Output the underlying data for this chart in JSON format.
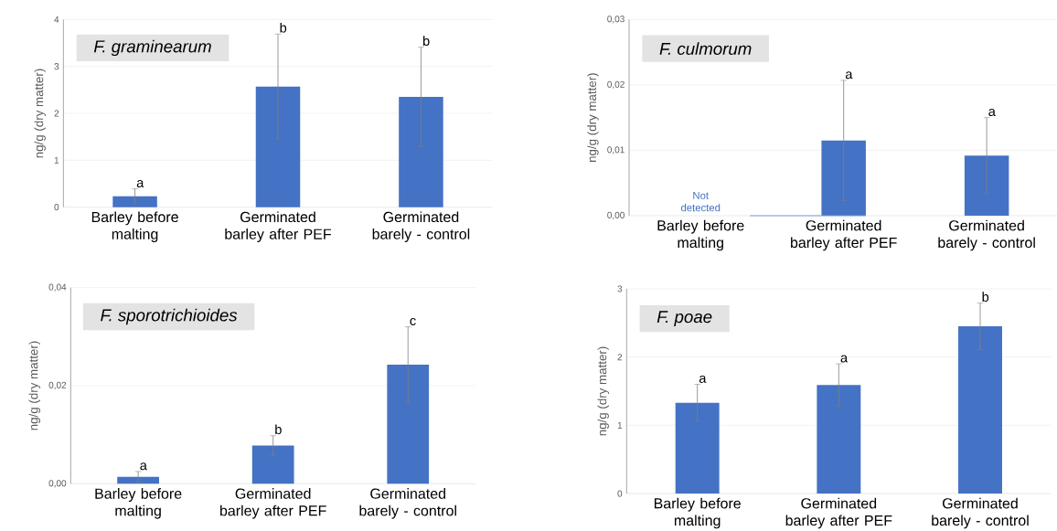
{
  "chart_data": [
    {
      "type": "bar",
      "title": "F. graminearum",
      "ylabel": "ng/g (dry matter)",
      "categories": [
        "Barley before malting",
        "Germinated barley after PEF",
        "Germinated barely - control"
      ],
      "values": [
        0.23,
        2.57,
        2.35
      ],
      "errors": [
        0.16,
        1.12,
        1.06
      ],
      "color": "#4472c4",
      "ylim": [
        0,
        4
      ],
      "yticks": [
        0,
        1,
        2,
        3,
        4
      ],
      "grid": "y",
      "annotations": [
        {
          "text": "a",
          "x": "Barley before malting",
          "y": 0.39
        },
        {
          "text": "b",
          "x": "Germinated barley after PEF",
          "y": 3.69
        },
        {
          "text": "b",
          "x": "Germinated barely - control",
          "y": 3.41
        }
      ]
    },
    {
      "type": "bar",
      "title": "F. culmorum",
      "ylabel": "ng/g (dry matter)",
      "categories": [
        "Barley before malting",
        "Germinated barley after PEF",
        "Germinated barely - control"
      ],
      "values": [
        0,
        0.0115,
        0.0092
      ],
      "errors": [
        null,
        0.0092,
        0.0058
      ],
      "color": "#4472c4",
      "ylim": [
        0,
        0.03
      ],
      "yticks": [
        {
          "value": 0,
          "label": "0,00"
        },
        {
          "value": 0.01,
          "label": "0,01"
        },
        {
          "value": 0.02,
          "label": "0,02"
        },
        {
          "value": 0.03,
          "label": "0,03"
        }
      ],
      "grid": "y",
      "annotations": [
        {
          "text": "Not detected",
          "x": "Barley before malting",
          "y": 0
        },
        {
          "text": "a",
          "x": "Germinated barley after PEF",
          "y": 0.0207
        },
        {
          "text": "a",
          "x": "Germinated barely - control",
          "y": 0.015
        }
      ]
    },
    {
      "type": "bar",
      "title": "F. sporotrichioides",
      "ylabel": "ng/g (dry matter)",
      "categories": [
        "Barley before malting",
        "Germinated barley after PEF",
        "Germinated barely - control"
      ],
      "values": [
        0.0014,
        0.0078,
        0.0243
      ],
      "errors": [
        0.0011,
        0.002,
        0.0077
      ],
      "color": "#4472c4",
      "ylim": [
        0,
        0.04
      ],
      "yticks": [
        {
          "value": 0,
          "label": "0,00"
        },
        {
          "value": 0.02,
          "label": "0,02"
        },
        {
          "value": 0.04,
          "label": "0,04"
        }
      ],
      "grid": "y",
      "annotations": [
        {
          "text": "a",
          "x": "Barley before malting",
          "y": 0.0025
        },
        {
          "text": "b",
          "x": "Germinated barley after PEF",
          "y": 0.0098
        },
        {
          "text": "c",
          "x": "Germinated barely - control",
          "y": 0.032
        }
      ]
    },
    {
      "type": "bar",
      "title": "F. poae",
      "ylabel": "ng/g (dry matter)",
      "categories": [
        "Barley before malting",
        "Germinated barley after PEF",
        "Germinated barely - control"
      ],
      "values": [
        1.33,
        1.59,
        2.45
      ],
      "errors": [
        0.27,
        0.31,
        0.34
      ],
      "color": "#4472c4",
      "ylim": [
        0,
        3
      ],
      "yticks": [
        0,
        1,
        2,
        3
      ],
      "grid": "y",
      "annotations": [
        {
          "text": "a",
          "x": "Barley before malting",
          "y": 1.6
        },
        {
          "text": "a",
          "x": "Germinated barley after PEF",
          "y": 1.9
        },
        {
          "text": "b",
          "x": "Germinated barely - control",
          "y": 2.79
        }
      ]
    }
  ]
}
